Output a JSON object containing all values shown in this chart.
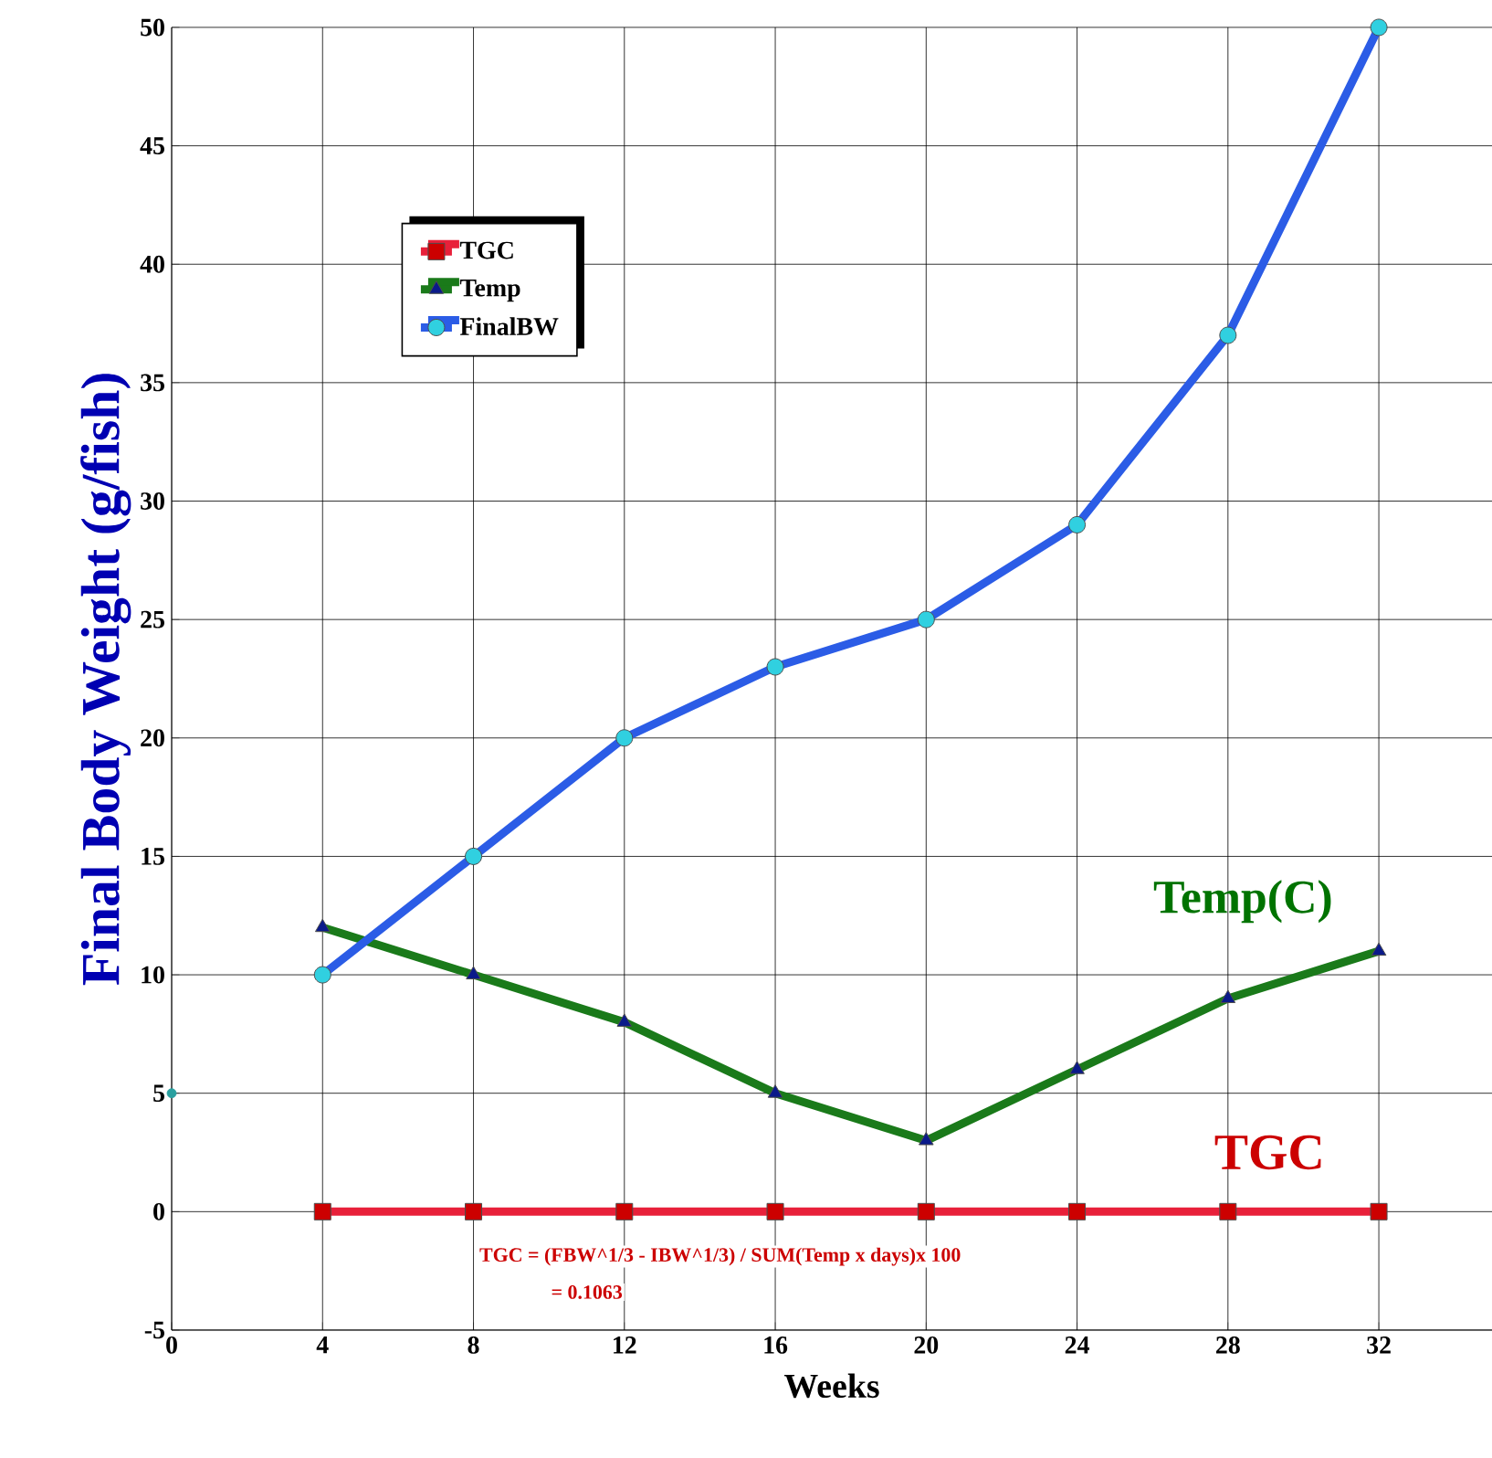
{
  "chart_data": {
    "type": "line",
    "xlabel": "Weeks",
    "ylabel": "Final Body Weight (g/fish)",
    "x": [
      4,
      8,
      12,
      16,
      20,
      24,
      28,
      32
    ],
    "series": [
      {
        "name": "TGC",
        "color": "#e8203a",
        "marker": "square",
        "values": [
          0,
          0,
          0,
          0,
          0,
          0,
          0,
          0
        ]
      },
      {
        "name": "Temp",
        "color": "#1a7a1a",
        "marker": "triangle",
        "values": [
          12,
          10,
          8,
          5,
          3,
          6,
          9,
          11
        ]
      },
      {
        "name": "FinalBW",
        "color": "#2b5ce6",
        "marker": "circle",
        "values": [
          10,
          15,
          20,
          23,
          25,
          29,
          37,
          50
        ]
      },
      {
        "type": "scatter",
        "color": "#2aa0a0",
        "marker": "circle",
        "x": [
          0
        ],
        "values": [
          5
        ]
      }
    ],
    "xlim": [
      0,
      35
    ],
    "ylim": [
      -5,
      50
    ],
    "xticks": [
      0,
      4,
      8,
      12,
      16,
      20,
      24,
      28,
      32
    ],
    "yticks": [
      -5,
      0,
      5,
      10,
      15,
      20,
      25,
      30,
      35,
      40,
      45,
      50
    ],
    "grid": true,
    "legend": "top left",
    "annotations": [
      "Temp(C)",
      "TGC",
      "TGC = (FBW^1/3 - IBW^1/3) / SUM(Temp x days)x 100",
      "= 0.1063"
    ]
  }
}
